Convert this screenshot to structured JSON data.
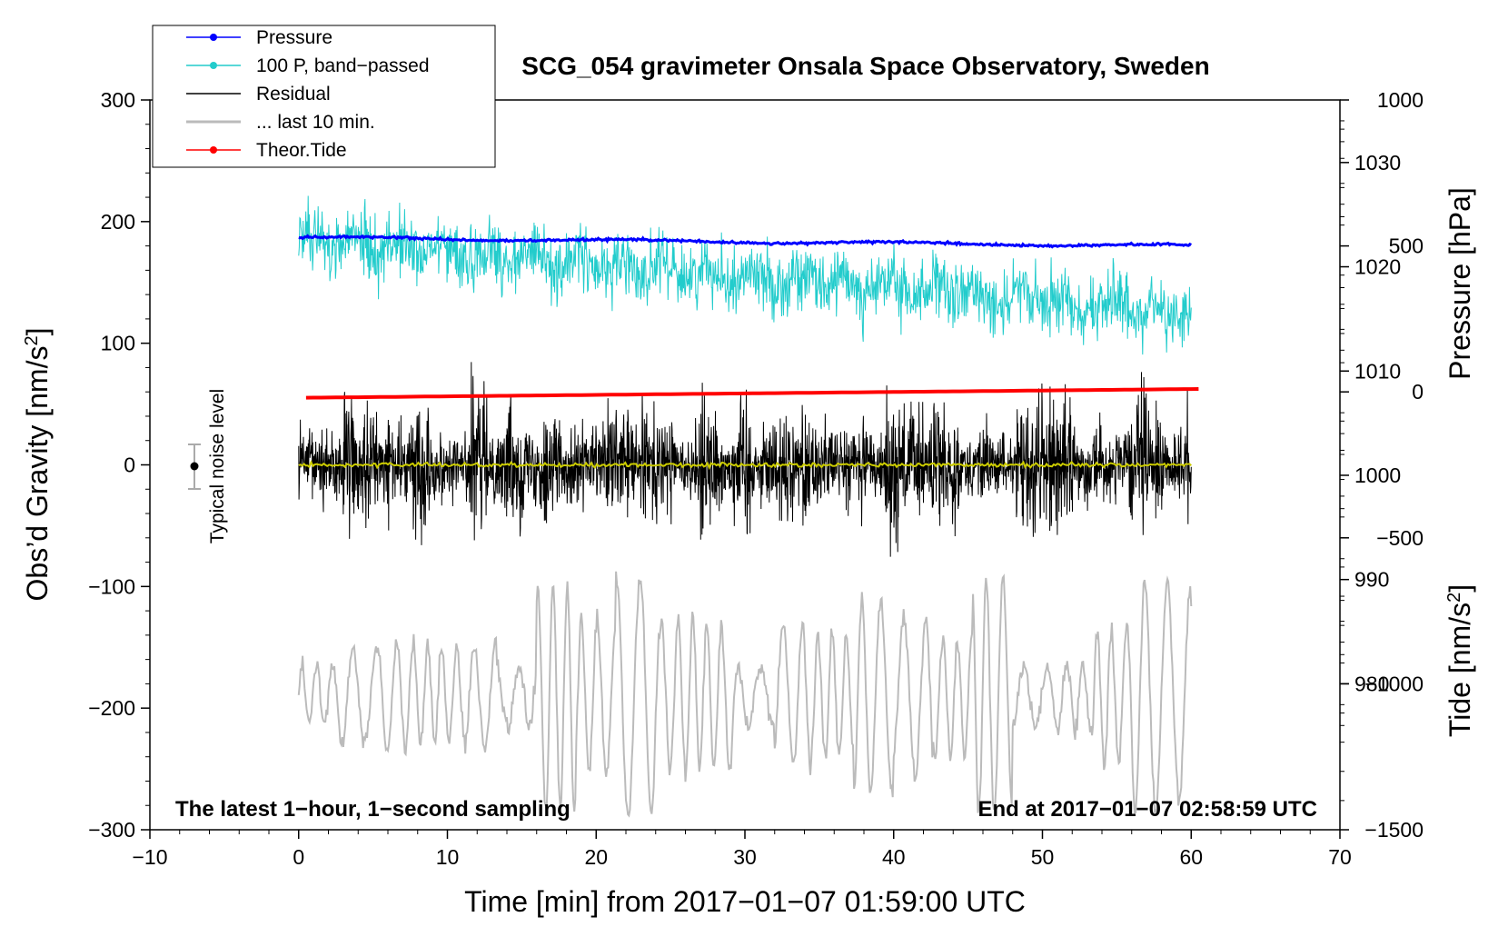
{
  "chart_data": {
    "type": "line",
    "title": "SCG_054 gravimeter Onsala Space Observatory, Sweden",
    "xlabel": "Time [min] from 2017−01−07 01:59:00 UTC",
    "ylabel_left": "Obs’d Gravity [nm/s",
    "ylabel_left_sup": "2",
    "ylabel_left_tail": "]",
    "ylabel_right_pressure": "Pressure [hPa]",
    "ylabel_right_tide": "Tide [nm/s",
    "ylabel_right_tide_sup": "2",
    "ylabel_right_tide_tail": "]",
    "xlim": [
      -10,
      70
    ],
    "ylim": [
      -300,
      300
    ],
    "pressure_lim": [
      966,
      1036
    ],
    "tide_lim": [
      -1500,
      1000
    ],
    "x_ticks": [
      -10,
      0,
      10,
      20,
      30,
      40,
      50,
      60,
      70
    ],
    "x_tick_labels": [
      "−10",
      "0",
      "10",
      "20",
      "30",
      "40",
      "50",
      "60",
      "70"
    ],
    "y_ticks": [
      300,
      200,
      100,
      0,
      -100,
      -200,
      -300
    ],
    "y_tick_labels": [
      "300",
      "200",
      "100",
      "0",
      "−100",
      "−200",
      "−300"
    ],
    "pressure_ticks": [
      1030,
      1020,
      1010,
      1000,
      990,
      980
    ],
    "pressure_tick_labels": [
      "1030",
      "1020",
      "1010",
      "1000",
      "990",
      "980"
    ],
    "tide_ticks": [
      1000,
      500,
      0,
      -500,
      -1000,
      -1500
    ],
    "tide_tick_labels": [
      "1000",
      "500",
      "0",
      "−500",
      "−1000",
      "−1500"
    ],
    "legend": {
      "position": "top-left",
      "entries": [
        {
          "label": "Pressure",
          "color": "#0000ff",
          "marker": true
        },
        {
          "label": "100 P, band−passed",
          "color": "#22cccc",
          "marker": true
        },
        {
          "label": "Residual",
          "color": "#000000",
          "marker": false
        },
        {
          "label": "... last 10 min.",
          "color": "#bbbbbb",
          "marker": false
        },
        {
          "label": "Theor.Tide",
          "color": "#ff0000",
          "marker": true
        }
      ]
    },
    "series": [
      {
        "name": "Pressure",
        "axis": "pressure",
        "color": "#0000ff",
        "x_range": [
          0,
          60
        ],
        "start": 1022.8,
        "end": 1022.0
      },
      {
        "name": "100 P, band-passed",
        "axis": "gravity",
        "color": "#22cccc",
        "x_range": [
          0,
          60
        ],
        "center_start": 185,
        "center_end": 125,
        "amplitude": 35
      },
      {
        "name": "Residual",
        "axis": "gravity",
        "color": "#000000",
        "x_range": [
          0,
          60
        ],
        "center": 0,
        "amplitude": 85
      },
      {
        "name": "Residual smoothed",
        "axis": "gravity",
        "color": "#cccc00",
        "x_range": [
          0,
          60
        ],
        "center": 0
      },
      {
        "name": "... last 10 min.",
        "axis": "gravity",
        "color": "#bbbbbb",
        "x_range": [
          0,
          60
        ],
        "center": -190,
        "amplitude": 90
      },
      {
        "name": "Theor.Tide",
        "axis": "tide",
        "color": "#ff0000",
        "x_range": [
          0.5,
          60.5
        ],
        "start": -20,
        "end": 10
      }
    ],
    "noise_bar": {
      "label": "Typical noise level",
      "x": -7,
      "y_center": 0,
      "y_half": 20
    },
    "annotation_left": "The latest 1−hour, 1−second sampling",
    "annotation_right": "End at 2017−01−07 02:58:59 UTC"
  }
}
